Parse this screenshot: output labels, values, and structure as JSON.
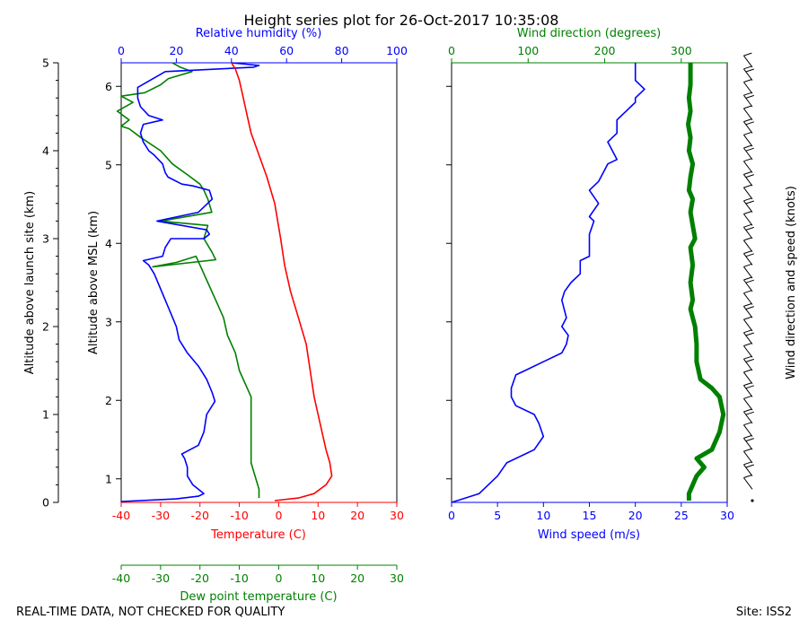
{
  "title": "Height series plot for 26-Oct-2017 10:35:08",
  "footer": {
    "left": "REAL-TIME DATA, NOT CHECKED FOR QUALITY",
    "right": "Site: ISS2"
  },
  "colors": {
    "temperature": "#ff0000",
    "dewpoint": "#008000",
    "humidity": "#0000ff",
    "wind_speed": "#0000ff",
    "wind_dir": "#008000",
    "axis": "#000000"
  },
  "chart_data": [
    {
      "type": "line",
      "id": "thermo",
      "title": "",
      "axes": {
        "temperature_x": {
          "label": "Temperature (C)",
          "range": [
            -40,
            30
          ],
          "ticks": [
            -40,
            -30,
            -20,
            -10,
            0,
            10,
            20,
            30
          ]
        },
        "dewpoint_x": {
          "label": "Dew point temperature (C)",
          "range": [
            -40,
            30
          ],
          "ticks": [
            -40,
            -30,
            -20,
            -10,
            0,
            10,
            20,
            30
          ]
        },
        "humidity_x": {
          "label": "Relative humidity (%)",
          "range": [
            0,
            100
          ],
          "ticks": [
            0,
            20,
            40,
            60,
            80,
            100
          ]
        },
        "agl_y": {
          "label": "Altitude above launch site (km)",
          "range": [
            0,
            5
          ],
          "ticks": [
            0,
            1,
            2,
            3,
            4,
            5
          ]
        },
        "msl_y": {
          "label": "Altitude above MSL (km)",
          "range": [
            0.7,
            6.3
          ],
          "ticks": [
            1,
            2,
            3,
            4,
            5,
            6
          ]
        }
      },
      "series": [
        {
          "name": "Temperature (C)",
          "x_axis": "temperature_x",
          "points": [
            [
              -1,
              0.02
            ],
            [
              5,
              0.05
            ],
            [
              9,
              0.1
            ],
            [
              12,
              0.2
            ],
            [
              13.5,
              0.3
            ],
            [
              13,
              0.45
            ],
            [
              12,
              0.6
            ],
            [
              11,
              0.8
            ],
            [
              10,
              1.0
            ],
            [
              9,
              1.2
            ],
            [
              8,
              1.5
            ],
            [
              7,
              1.8
            ],
            [
              5,
              2.1
            ],
            [
              3,
              2.4
            ],
            [
              1.5,
              2.7
            ],
            [
              0.5,
              3.0
            ],
            [
              -1,
              3.4
            ],
            [
              -3,
              3.7
            ],
            [
              -5,
              3.95
            ],
            [
              -7,
              4.2
            ],
            [
              -8,
              4.4
            ],
            [
              -9,
              4.6
            ],
            [
              -10,
              4.8
            ],
            [
              -11,
              4.93
            ],
            [
              -12,
              5.0
            ]
          ]
        },
        {
          "name": "Dew point temperature (C)",
          "x_axis": "dewpoint_x",
          "points": [
            [
              -5,
              0.05
            ],
            [
              -5,
              0.15
            ],
            [
              -6,
              0.3
            ],
            [
              -7,
              0.45
            ],
            [
              -7,
              0.6
            ],
            [
              -7,
              0.8
            ],
            [
              -7,
              1.0
            ],
            [
              -7,
              1.2
            ],
            [
              -8,
              1.3
            ],
            [
              -10,
              1.5
            ],
            [
              -11,
              1.7
            ],
            [
              -13,
              1.9
            ],
            [
              -14,
              2.1
            ],
            [
              -16,
              2.3
            ],
            [
              -18,
              2.5
            ],
            [
              -19,
              2.6
            ],
            [
              -21,
              2.8
            ],
            [
              -26,
              2.73
            ],
            [
              -32,
              2.68
            ],
            [
              -16,
              2.76
            ],
            [
              -17,
              2.85
            ],
            [
              -19,
              3.0
            ],
            [
              -18,
              3.15
            ],
            [
              -30,
              3.2
            ],
            [
              -17,
              3.3
            ],
            [
              -18,
              3.45
            ],
            [
              -19,
              3.55
            ],
            [
              -20,
              3.62
            ],
            [
              -23,
              3.72
            ],
            [
              -27,
              3.85
            ],
            [
              -30,
              4.0
            ],
            [
              -35,
              4.15
            ],
            [
              -38,
              4.25
            ],
            [
              -40,
              4.28
            ],
            [
              -38,
              4.35
            ],
            [
              -41,
              4.45
            ],
            [
              -37,
              4.55
            ],
            [
              -40,
              4.62
            ],
            [
              -34,
              4.66
            ],
            [
              -30,
              4.75
            ],
            [
              -28,
              4.82
            ],
            [
              -22,
              4.9
            ],
            [
              -25,
              4.95
            ],
            [
              -27,
              5.0
            ]
          ]
        },
        {
          "name": "Relative humidity (%)",
          "x_axis": "humidity_x",
          "points": [
            [
              0,
              0.01
            ],
            [
              20,
              0.04
            ],
            [
              28,
              0.07
            ],
            [
              30,
              0.1
            ],
            [
              26,
              0.2
            ],
            [
              24,
              0.3
            ],
            [
              24,
              0.4
            ],
            [
              23,
              0.5
            ],
            [
              22,
              0.55
            ],
            [
              28,
              0.65
            ],
            [
              30,
              0.8
            ],
            [
              31,
              1.0
            ],
            [
              34,
              1.15
            ],
            [
              33,
              1.25
            ],
            [
              31,
              1.4
            ],
            [
              28,
              1.55
            ],
            [
              24,
              1.7
            ],
            [
              21,
              1.85
            ],
            [
              20,
              2.0
            ],
            [
              18,
              2.15
            ],
            [
              16,
              2.3
            ],
            [
              14,
              2.45
            ],
            [
              12,
              2.6
            ],
            [
              10,
              2.7
            ],
            [
              8,
              2.75
            ],
            [
              15,
              2.8
            ],
            [
              16,
              2.9
            ],
            [
              18,
              3.0
            ],
            [
              30,
              3.0
            ],
            [
              32,
              3.05
            ],
            [
              31,
              3.1
            ],
            [
              13,
              3.2
            ],
            [
              28,
              3.3
            ],
            [
              33,
              3.45
            ],
            [
              32,
              3.55
            ],
            [
              26,
              3.6
            ],
            [
              22,
              3.62
            ],
            [
              17,
              3.7
            ],
            [
              16,
              3.75
            ],
            [
              15,
              3.85
            ],
            [
              12,
              3.95
            ],
            [
              10,
              4.0
            ],
            [
              8,
              4.1
            ],
            [
              7,
              4.2
            ],
            [
              8,
              4.3
            ],
            [
              15,
              4.35
            ],
            [
              10,
              4.4
            ],
            [
              7,
              4.5
            ],
            [
              6,
              4.6
            ],
            [
              6,
              4.72
            ],
            [
              16,
              4.9
            ],
            [
              48,
              4.95
            ],
            [
              50,
              4.97
            ],
            [
              40,
              5.0
            ]
          ]
        }
      ]
    },
    {
      "type": "line",
      "id": "wind",
      "title": "",
      "axes": {
        "speed_x": {
          "label": "Wind speed (m/s)",
          "range": [
            0,
            30
          ],
          "ticks": [
            0,
            5,
            10,
            15,
            20,
            25,
            30
          ]
        },
        "dir_x": {
          "label": "Wind direction (degrees)",
          "range": [
            0,
            360
          ],
          "ticks": [
            0,
            100,
            200,
            300
          ]
        },
        "barbs_y": {
          "label": "Wind direction and speed (knots)"
        }
      },
      "series": [
        {
          "name": "Wind speed (m/s)",
          "x_axis": "speed_x",
          "points": [
            [
              0,
              0.0
            ],
            [
              3,
              0.1
            ],
            [
              4,
              0.2
            ],
            [
              5,
              0.3
            ],
            [
              6,
              0.45
            ],
            [
              8,
              0.55
            ],
            [
              9,
              0.6
            ],
            [
              10,
              0.75
            ],
            [
              9.5,
              0.9
            ],
            [
              9,
              1.0
            ],
            [
              7,
              1.1
            ],
            [
              6.5,
              1.2
            ],
            [
              6.5,
              1.3
            ],
            [
              7,
              1.45
            ],
            [
              8,
              1.5
            ],
            [
              10,
              1.6
            ],
            [
              12,
              1.7
            ],
            [
              12.5,
              1.8
            ],
            [
              12.7,
              1.9
            ],
            [
              12,
              2.0
            ],
            [
              12.5,
              2.1
            ],
            [
              12,
              2.3
            ],
            [
              12.3,
              2.4
            ],
            [
              13,
              2.5
            ],
            [
              14,
              2.6
            ],
            [
              14,
              2.75
            ],
            [
              15,
              2.8
            ],
            [
              15,
              2.9
            ],
            [
              15,
              3.05
            ],
            [
              15.5,
              3.2
            ],
            [
              15,
              3.25
            ],
            [
              16,
              3.4
            ],
            [
              15,
              3.55
            ],
            [
              16,
              3.65
            ],
            [
              16.5,
              3.75
            ],
            [
              17,
              3.85
            ],
            [
              18,
              3.9
            ],
            [
              17.5,
              4.0
            ],
            [
              17,
              4.1
            ],
            [
              18,
              4.2
            ],
            [
              18,
              4.35
            ],
            [
              19,
              4.45
            ],
            [
              19.5,
              4.5
            ],
            [
              20,
              4.55
            ],
            [
              20,
              4.6
            ],
            [
              21,
              4.7
            ],
            [
              20,
              4.8
            ],
            [
              20,
              4.88
            ],
            [
              20,
              4.95
            ],
            [
              20,
              5.0
            ]
          ]
        },
        {
          "name": "Wind direction (degrees)",
          "x_axis": "dir_x",
          "points": [
            [
              310,
              0.02
            ],
            [
              310,
              0.1
            ],
            [
              315,
              0.2
            ],
            [
              320,
              0.3
            ],
            [
              330,
              0.4
            ],
            [
              320,
              0.5
            ],
            [
              340,
              0.6
            ],
            [
              350,
              0.8
            ],
            [
              355,
              1.0
            ],
            [
              350,
              1.2
            ],
            [
              340,
              1.3
            ],
            [
              325,
              1.4
            ],
            [
              320,
              1.6
            ],
            [
              320,
              1.8
            ],
            [
              318,
              2.0
            ],
            [
              315,
              2.1
            ],
            [
              312,
              2.2
            ],
            [
              315,
              2.3
            ],
            [
              312,
              2.5
            ],
            [
              315,
              2.7
            ],
            [
              312,
              2.9
            ],
            [
              318,
              3.0
            ],
            [
              315,
              3.15
            ],
            [
              312,
              3.3
            ],
            [
              315,
              3.45
            ],
            [
              310,
              3.55
            ],
            [
              312,
              3.7
            ],
            [
              315,
              3.85
            ],
            [
              310,
              4.0
            ],
            [
              312,
              4.15
            ],
            [
              309,
              4.3
            ],
            [
              312,
              4.45
            ],
            [
              310,
              4.6
            ],
            [
              312,
              4.75
            ],
            [
              312,
              4.9
            ],
            [
              312,
              5.0
            ]
          ]
        }
      ],
      "barbs": {
        "altitudes": [
          0.02,
          0.15,
          0.3,
          0.45,
          0.6,
          0.75,
          0.9,
          1.05,
          1.2,
          1.35,
          1.5,
          1.65,
          1.8,
          1.95,
          2.1,
          2.25,
          2.4,
          2.55,
          2.7,
          2.85,
          3.0,
          3.15,
          3.3,
          3.45,
          3.6,
          3.75,
          3.9,
          4.05,
          4.2,
          4.35,
          4.5,
          4.65,
          4.8,
          4.95
        ]
      }
    }
  ]
}
